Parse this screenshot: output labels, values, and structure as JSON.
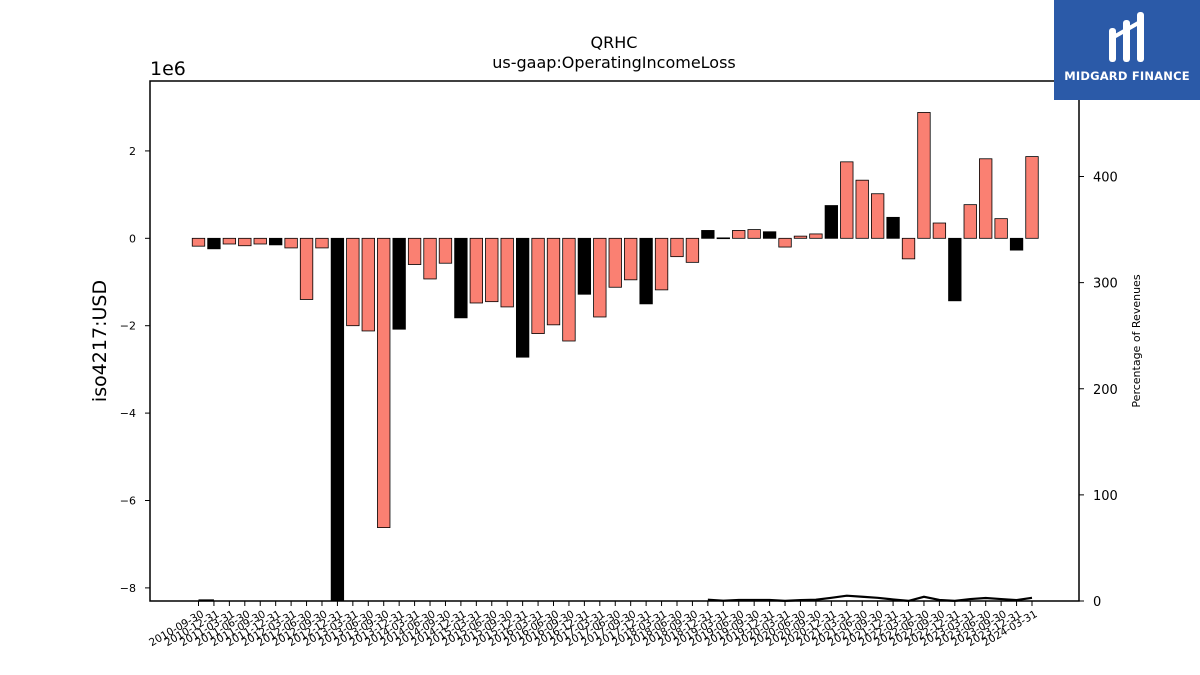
{
  "chart_data": {
    "type": "bar",
    "title": "QRHC",
    "subtitle": "us-gaap:OperatingIncomeLoss",
    "ylabel": "iso4217:USD",
    "y2label": "Percentage of Revenues",
    "offset_label": "1e6",
    "ylim": [
      -8.3,
      3.6
    ],
    "y2lim": [
      0,
      490
    ],
    "yticks": [
      "−8",
      "−6",
      "−4",
      "−2",
      "0",
      "2"
    ],
    "y2ticks": [
      "0",
      "100",
      "200",
      "300",
      "400"
    ],
    "x_tick_labels": [
      "2010-09-30",
      "2010-12-31",
      "2011-03-31",
      "2011-06-30",
      "2011-09-30",
      "2011-12-31",
      "2012-03-31",
      "2012-06-30",
      "2012-09-30",
      "2012-12-31",
      "2013-03-31",
      "2013-06-30",
      "2013-09-30",
      "2013-12-31",
      "2014-03-31",
      "2014-06-30",
      "2014-09-30",
      "2014-12-31",
      "2015-03-31",
      "2015-06-30",
      "2015-09-30",
      "2015-12-31",
      "2016-03-31",
      "2016-06-30",
      "2016-09-30",
      "2016-12-31",
      "2017-03-31",
      "2017-06-30",
      "2017-09-30",
      "2017-12-31",
      "2018-03-31",
      "2018-06-30",
      "2018-09-30",
      "2018-12-31",
      "2019-03-31",
      "2019-06-30",
      "2019-09-30",
      "2019-12-31",
      "2020-03-31",
      "2020-06-30",
      "2020-09-30",
      "2020-12-31",
      "2021-03-31",
      "2021-06-30",
      "2021-09-30",
      "2021-12-31",
      "2022-03-31",
      "2022-06-30",
      "2022-09-30",
      "2022-12-31",
      "2023-03-31",
      "2023-06-30",
      "2023-09-30",
      "2023-12-31",
      "2024-03-31"
    ],
    "bars": [
      {
        "value": -0.18,
        "highlight": false
      },
      {
        "value": -0.24,
        "highlight": true
      },
      {
        "value": -0.13,
        "highlight": false
      },
      {
        "value": -0.17,
        "highlight": false
      },
      {
        "value": -0.13,
        "highlight": false
      },
      {
        "value": -0.15,
        "highlight": true
      },
      {
        "value": -0.22,
        "highlight": false
      },
      {
        "value": -1.4,
        "highlight": false
      },
      {
        "value": -0.22,
        "highlight": false
      },
      {
        "value": -8.4,
        "highlight": true
      },
      {
        "value": -2.0,
        "highlight": false
      },
      {
        "value": -2.12,
        "highlight": false
      },
      {
        "value": -6.62,
        "highlight": false
      },
      {
        "value": -2.08,
        "highlight": true
      },
      {
        "value": -0.6,
        "highlight": false
      },
      {
        "value": -0.93,
        "highlight": false
      },
      {
        "value": -0.57,
        "highlight": false
      },
      {
        "value": -1.82,
        "highlight": true
      },
      {
        "value": -1.48,
        "highlight": false
      },
      {
        "value": -1.45,
        "highlight": false
      },
      {
        "value": -1.57,
        "highlight": false
      },
      {
        "value": -2.72,
        "highlight": true
      },
      {
        "value": -2.18,
        "highlight": false
      },
      {
        "value": -1.98,
        "highlight": false
      },
      {
        "value": -2.35,
        "highlight": false
      },
      {
        "value": -1.28,
        "highlight": true
      },
      {
        "value": -1.8,
        "highlight": false
      },
      {
        "value": -1.12,
        "highlight": false
      },
      {
        "value": -0.95,
        "highlight": false
      },
      {
        "value": -1.5,
        "highlight": true
      },
      {
        "value": -1.18,
        "highlight": false
      },
      {
        "value": -0.42,
        "highlight": false
      },
      {
        "value": -0.55,
        "highlight": false
      },
      {
        "value": 0.18,
        "highlight": true
      },
      {
        "value": 0.01,
        "highlight": false
      },
      {
        "value": 0.18,
        "highlight": false
      },
      {
        "value": 0.2,
        "highlight": false
      },
      {
        "value": 0.15,
        "highlight": true
      },
      {
        "value": -0.2,
        "highlight": false
      },
      {
        "value": 0.05,
        "highlight": false
      },
      {
        "value": 0.1,
        "highlight": false
      },
      {
        "value": 0.75,
        "highlight": true
      },
      {
        "value": 1.75,
        "highlight": false
      },
      {
        "value": 1.33,
        "highlight": false
      },
      {
        "value": 1.02,
        "highlight": false
      },
      {
        "value": 0.48,
        "highlight": true
      },
      {
        "value": -0.47,
        "highlight": false
      },
      {
        "value": 2.88,
        "highlight": false
      },
      {
        "value": 0.35,
        "highlight": false
      },
      {
        "value": -1.43,
        "highlight": true
      },
      {
        "value": 0.77,
        "highlight": false
      },
      {
        "value": 1.82,
        "highlight": false
      },
      {
        "value": 0.45,
        "highlight": false
      },
      {
        "value": -0.27,
        "highlight": true
      },
      {
        "value": 1.87,
        "highlight": false
      }
    ],
    "secondary_line": {
      "name": "Percentage of Revenues",
      "values": [
        0.5,
        0.5,
        null,
        null,
        null,
        null,
        null,
        null,
        null,
        null,
        null,
        null,
        null,
        null,
        null,
        null,
        null,
        null,
        null,
        null,
        null,
        null,
        null,
        null,
        null,
        null,
        null,
        null,
        null,
        null,
        null,
        null,
        null,
        1.2,
        0.3,
        1.0,
        1.0,
        1.0,
        0.1,
        0.8,
        1.2,
        3.0,
        5.0,
        4.0,
        3.0,
        1.5,
        0.1,
        4.0,
        1.0,
        0.1,
        1.8,
        2.8,
        1.8,
        0.8,
        3.0
      ]
    },
    "colors": {
      "bar": "#fa8072",
      "bar_highlight": "#000000",
      "edge": "#000000",
      "line": "#000000"
    },
    "grid": false,
    "legend": "none"
  },
  "logo": {
    "text": "MIDGARD FINANCE",
    "background": "#2b5aa8"
  }
}
